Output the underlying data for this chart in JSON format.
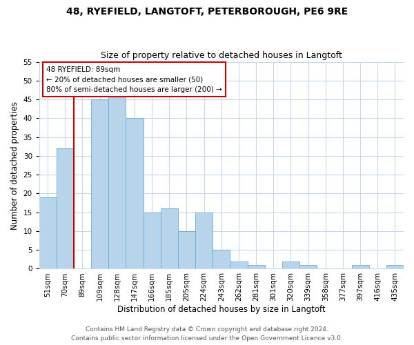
{
  "title": "48, RYEFIELD, LANGTOFT, PETERBOROUGH, PE6 9RE",
  "subtitle": "Size of property relative to detached houses in Langtoft",
  "xlabel": "Distribution of detached houses by size in Langtoft",
  "ylabel": "Number of detached properties",
  "bar_labels": [
    "51sqm",
    "70sqm",
    "89sqm",
    "109sqm",
    "128sqm",
    "147sqm",
    "166sqm",
    "185sqm",
    "205sqm",
    "224sqm",
    "243sqm",
    "262sqm",
    "281sqm",
    "301sqm",
    "320sqm",
    "339sqm",
    "358sqm",
    "377sqm",
    "397sqm",
    "416sqm",
    "435sqm"
  ],
  "bar_values": [
    19,
    32,
    0,
    45,
    46,
    40,
    15,
    16,
    10,
    15,
    5,
    2,
    1,
    0,
    2,
    1,
    0,
    0,
    1,
    0,
    1
  ],
  "bar_color": "#b8d4ea",
  "bar_edge_color": "#6aaad4",
  "highlight_line_color": "#cc0000",
  "highlight_bar_index": 2,
  "annotation_title": "48 RYEFIELD: 89sqm",
  "annotation_line1": "← 20% of detached houses are smaller (50)",
  "annotation_line2": "80% of semi-detached houses are larger (200) →",
  "annotation_box_color": "#ffffff",
  "annotation_box_edge": "#cc0000",
  "ylim": [
    0,
    55
  ],
  "yticks": [
    0,
    5,
    10,
    15,
    20,
    25,
    30,
    35,
    40,
    45,
    50,
    55
  ],
  "footer1": "Contains HM Land Registry data © Crown copyright and database right 2024.",
  "footer2": "Contains public sector information licensed under the Open Government Licence v3.0.",
  "background_color": "#ffffff",
  "grid_color": "#c8d8e8",
  "title_fontsize": 10,
  "subtitle_fontsize": 9,
  "axis_label_fontsize": 8.5,
  "tick_fontsize": 7.5,
  "footer_fontsize": 6.5
}
